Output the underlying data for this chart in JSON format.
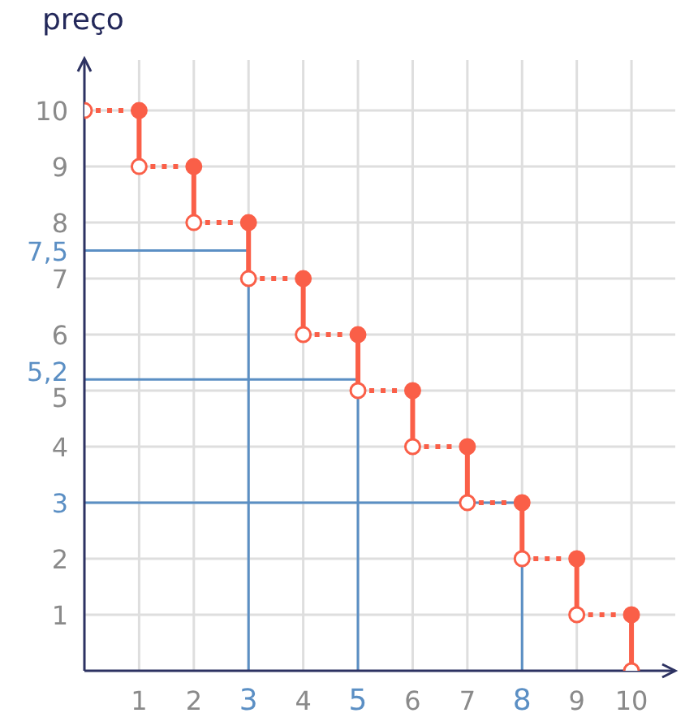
{
  "chart_data": {
    "type": "step",
    "ylabel": "preço",
    "xlim": [
      0,
      10.8
    ],
    "ylim": [
      0,
      10.9
    ],
    "xticks": [
      1,
      2,
      3,
      4,
      5,
      6,
      7,
      8,
      9,
      10
    ],
    "yticks": [
      1,
      2,
      3,
      4,
      5,
      {
        "value": 5.2,
        "label": "5,2"
      },
      6,
      7,
      {
        "value": 7.5,
        "label": "7,5"
      },
      8,
      9,
      10
    ],
    "grid": true,
    "series": [
      {
        "type": "line",
        "color": "#5b8fc4",
        "line_style": "solid",
        "x": [
          3,
          3,
          0
        ],
        "values": [
          0,
          7.5,
          7.5
        ]
      },
      {
        "type": "line",
        "color": "#5b8fc4",
        "line_style": "solid",
        "x": [
          5,
          5,
          0
        ],
        "values": [
          0,
          5.2,
          5.2
        ]
      },
      {
        "type": "line",
        "color": "#5b8fc4",
        "line_style": "solid",
        "x": [
          8,
          8,
          0
        ],
        "values": [
          0,
          3,
          3
        ]
      },
      {
        "type": "step",
        "color": "#fa5f48",
        "line_style": "dotted",
        "marker": "circle",
        "x": [
          0,
          1,
          2,
          3,
          4,
          5,
          6,
          7,
          8,
          9,
          10
        ],
        "values": [
          10,
          9,
          8,
          7,
          6,
          5,
          4,
          3,
          2,
          1,
          0
        ]
      },
      {
        "type": "scatter",
        "color": "#fa5f48",
        "marker": "circle",
        "x": [
          1,
          2,
          3,
          4,
          5,
          6,
          7,
          8,
          9,
          10
        ],
        "values": [
          10,
          9,
          8,
          7,
          6,
          5,
          4,
          3,
          2,
          1
        ]
      }
    ]
  }
}
